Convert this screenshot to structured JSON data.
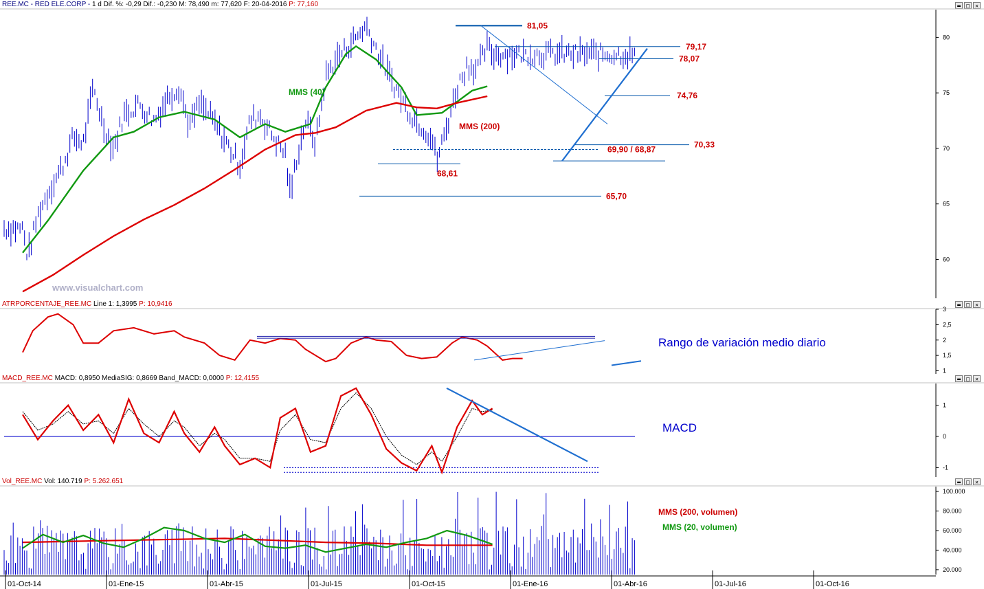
{
  "header": {
    "symbol": "REE.MC - RED ELE.CORP -",
    "stats": "1 d  Dif. %: -0,29  Dif.: -0,230  M: 78,490  m: 77,620  F: 20-04-2016",
    "price": "P: 77,160"
  },
  "watermark": "www.visualchart.com",
  "labels": {
    "mms40": "MMS (40)",
    "mms200": "MMS (200)",
    "atr_note": "Rango de variación medio diario",
    "macd_note": "MACD",
    "vol_mms200": "MMS (200, volumen)",
    "vol_mms20": "MMS (20, volumen)"
  },
  "window_buttons": [
    "▬",
    "□",
    "✕"
  ],
  "panels": {
    "atr": {
      "name": "ATRPORCENTAJE_REE.MC",
      "values": "Line 1: 1,3995",
      "price": "P: 10,9416"
    },
    "macd": {
      "name": "MACD_REE.MC",
      "values": "MACD: 0,8950  MediaSIG: 0,8669  Band_MACD: 0,0000",
      "price": "P: 12,4155"
    },
    "vol": {
      "name": "Vol_REE.MC",
      "values": "Vol: 140.719",
      "price": "P: 5.262.651"
    }
  },
  "colors": {
    "price_bars": "#0000cc",
    "mms40": "#119911",
    "mms200": "#dd0000",
    "trendline": "#1f6fd0",
    "levels": "#0055aa",
    "label_red": "#cc0000"
  },
  "chart_data": [
    {
      "type": "ohlc",
      "title": "REE.MC - RED ELE.CORP",
      "x": [
        "01-Oct-14",
        "01-Ene-15",
        "01-Abr-15",
        "01-Jul-15",
        "01-Oct-15",
        "01-Ene-16",
        "01-Abr-16",
        "01-Jul-16",
        "01-Oct-16"
      ],
      "ylim": [
        56.5,
        82.5
      ],
      "yticks": [
        "60",
        "65",
        "70",
        "75",
        "80"
      ],
      "series": [
        {
          "name": "MMS (40)",
          "points": [
            [
              0,
              60.6
            ],
            [
              0.25,
              63.5
            ],
            [
              0.6,
              68
            ],
            [
              0.9,
              71
            ],
            [
              1.1,
              71.5
            ],
            [
              1.35,
              72.8
            ],
            [
              1.6,
              73.3
            ],
            [
              1.9,
              72.6
            ],
            [
              2.15,
              71
            ],
            [
              2.4,
              72.2
            ],
            [
              2.6,
              71.5
            ],
            [
              2.85,
              72.2
            ],
            [
              3.0,
              75.5
            ],
            [
              3.2,
              78.5
            ],
            [
              3.3,
              79.2
            ],
            [
              3.5,
              78.0
            ],
            [
              3.75,
              75.5
            ],
            [
              3.9,
              73.0
            ],
            [
              4.15,
              73.2
            ],
            [
              4.3,
              74.2
            ],
            [
              4.45,
              75.2
            ],
            [
              4.6,
              75.6
            ]
          ]
        },
        {
          "name": "MMS (200)",
          "points": [
            [
              0,
              57.1
            ],
            [
              0.3,
              58.6
            ],
            [
              0.6,
              60.4
            ],
            [
              0.9,
              62.1
            ],
            [
              1.2,
              63.6
            ],
            [
              1.5,
              64.9
            ],
            [
              1.8,
              66.4
            ],
            [
              2.1,
              68.1
            ],
            [
              2.4,
              69.9
            ],
            [
              2.7,
              71.2
            ],
            [
              2.9,
              71.4
            ],
            [
              3.1,
              71.9
            ],
            [
              3.4,
              73.4
            ],
            [
              3.7,
              74.1
            ],
            [
              3.9,
              73.7
            ],
            [
              4.1,
              73.6
            ],
            [
              4.3,
              74.1
            ],
            [
              4.6,
              74.7
            ]
          ]
        },
        {
          "name": "price",
          "points": [
            [
              0,
              62.8
            ],
            [
              0.05,
              60.2
            ],
            [
              0.15,
              64
            ],
            [
              0.25,
              66
            ],
            [
              0.4,
              68.5
            ],
            [
              0.5,
              71
            ],
            [
              0.6,
              70.5
            ],
            [
              0.7,
              75.5
            ],
            [
              0.8,
              72
            ],
            [
              0.9,
              70
            ],
            [
              1.0,
              73
            ],
            [
              1.15,
              74
            ],
            [
              1.3,
              72.5
            ],
            [
              1.45,
              74.8
            ],
            [
              1.55,
              75.5
            ],
            [
              1.65,
              72
            ],
            [
              1.75,
              74
            ],
            [
              1.85,
              73
            ],
            [
              1.95,
              71.5
            ],
            [
              2.05,
              70
            ],
            [
              2.15,
              68.5
            ],
            [
              2.25,
              72.5
            ],
            [
              2.35,
              73
            ],
            [
              2.45,
              71.5
            ],
            [
              2.6,
              69.5
            ],
            [
              2.65,
              65.7
            ],
            [
              2.7,
              68.6
            ],
            [
              2.8,
              72.5
            ],
            [
              2.9,
              70.5
            ],
            [
              3.0,
              76.5
            ],
            [
              3.1,
              78
            ],
            [
              3.25,
              79.5
            ],
            [
              3.4,
              81.05
            ],
            [
              3.5,
              79
            ],
            [
              3.6,
              77
            ],
            [
              3.75,
              74.5
            ],
            [
              3.85,
              73
            ],
            [
              3.95,
              72
            ],
            [
              4.05,
              71
            ],
            [
              4.1,
              68.87
            ],
            [
              4.2,
              72
            ],
            [
              4.3,
              75.5
            ],
            [
              4.4,
              77.5
            ],
            [
              4.5,
              77.2
            ],
            [
              4.6,
              79.17
            ],
            [
              4.65,
              78.5
            ]
          ]
        }
      ],
      "levels": [
        {
          "value": 81.05,
          "label": "81,05"
        },
        {
          "value": 79.17,
          "label": "79,17"
        },
        {
          "value": 78.07,
          "label": "78,07"
        },
        {
          "value": 74.76,
          "label": "74,76"
        },
        {
          "value": 70.33,
          "label": "70,33"
        },
        {
          "value": 69.9,
          "label": "69,90 / 68,87",
          "dashed": true
        },
        {
          "value": 68.61,
          "label": "68,61"
        },
        {
          "value": 65.7,
          "label": "65,70"
        }
      ]
    },
    {
      "type": "line",
      "title": "ATRPORCENTAJE_REE.MC",
      "ylim": [
        0.9,
        3.0
      ],
      "yticks": [
        "1",
        "1,5",
        "2",
        "2,5",
        "3"
      ],
      "series": [
        {
          "name": "Line 1",
          "points": [
            [
              0,
              1.6
            ],
            [
              0.1,
              2.3
            ],
            [
              0.25,
              2.75
            ],
            [
              0.35,
              2.85
            ],
            [
              0.5,
              2.5
            ],
            [
              0.6,
              1.9
            ],
            [
              0.75,
              1.9
            ],
            [
              0.9,
              2.3
            ],
            [
              1.1,
              2.4
            ],
            [
              1.3,
              2.2
            ],
            [
              1.5,
              2.3
            ],
            [
              1.6,
              2.1
            ],
            [
              1.8,
              1.9
            ],
            [
              1.95,
              1.5
            ],
            [
              2.1,
              1.35
            ],
            [
              2.25,
              2.0
            ],
            [
              2.4,
              1.9
            ],
            [
              2.55,
              2.05
            ],
            [
              2.7,
              2.0
            ],
            [
              2.8,
              1.7
            ],
            [
              3.0,
              1.3
            ],
            [
              3.1,
              1.4
            ],
            [
              3.25,
              1.9
            ],
            [
              3.4,
              2.1
            ],
            [
              3.5,
              2.0
            ],
            [
              3.65,
              1.95
            ],
            [
              3.8,
              1.5
            ],
            [
              3.95,
              1.4
            ],
            [
              4.1,
              1.45
            ],
            [
              4.25,
              1.9
            ],
            [
              4.35,
              2.1
            ],
            [
              4.5,
              2.0
            ],
            [
              4.6,
              1.8
            ],
            [
              4.75,
              1.35
            ],
            [
              4.85,
              1.4
            ],
            [
              4.95,
              1.4
            ]
          ]
        }
      ]
    },
    {
      "type": "line",
      "title": "MACD_REE.MC",
      "ylim": [
        -1.3,
        1.7
      ],
      "yticks": [
        "-1",
        "0",
        "1"
      ],
      "series": [
        {
          "name": "MACD",
          "points": [
            [
              0,
              0.7
            ],
            [
              0.15,
              -0.1
            ],
            [
              0.3,
              0.5
            ],
            [
              0.45,
              1.0
            ],
            [
              0.6,
              0.2
            ],
            [
              0.75,
              0.7
            ],
            [
              0.9,
              -0.2
            ],
            [
              1.05,
              1.2
            ],
            [
              1.2,
              0.1
            ],
            [
              1.35,
              -0.2
            ],
            [
              1.5,
              0.8
            ],
            [
              1.6,
              0.1
            ],
            [
              1.75,
              -0.5
            ],
            [
              1.9,
              0.3
            ],
            [
              2.0,
              -0.3
            ],
            [
              2.15,
              -0.9
            ],
            [
              2.3,
              -0.7
            ],
            [
              2.45,
              -1.0
            ],
            [
              2.55,
              0.6
            ],
            [
              2.7,
              0.9
            ],
            [
              2.85,
              -0.5
            ],
            [
              3.0,
              -0.3
            ],
            [
              3.15,
              1.3
            ],
            [
              3.3,
              1.55
            ],
            [
              3.45,
              0.7
            ],
            [
              3.6,
              -0.4
            ],
            [
              3.75,
              -0.85
            ],
            [
              3.9,
              -1.1
            ],
            [
              4.05,
              -0.3
            ],
            [
              4.15,
              -1.15
            ],
            [
              4.3,
              0.3
            ],
            [
              4.45,
              1.15
            ],
            [
              4.55,
              0.7
            ],
            [
              4.65,
              0.9
            ]
          ]
        },
        {
          "name": "MediaSIG",
          "points": [
            [
              0,
              0.8
            ],
            [
              0.15,
              0.2
            ],
            [
              0.3,
              0.4
            ],
            [
              0.45,
              0.8
            ],
            [
              0.6,
              0.4
            ],
            [
              0.75,
              0.5
            ],
            [
              0.9,
              0.1
            ],
            [
              1.05,
              0.9
            ],
            [
              1.2,
              0.4
            ],
            [
              1.35,
              0.0
            ],
            [
              1.5,
              0.5
            ],
            [
              1.6,
              0.3
            ],
            [
              1.75,
              -0.3
            ],
            [
              1.9,
              0.1
            ],
            [
              2.0,
              -0.1
            ],
            [
              2.15,
              -0.7
            ],
            [
              2.3,
              -0.7
            ],
            [
              2.45,
              -0.8
            ],
            [
              2.55,
              0.2
            ],
            [
              2.7,
              0.7
            ],
            [
              2.85,
              -0.1
            ],
            [
              3.0,
              -0.2
            ],
            [
              3.15,
              0.9
            ],
            [
              3.3,
              1.4
            ],
            [
              3.45,
              0.9
            ],
            [
              3.6,
              0.0
            ],
            [
              3.75,
              -0.6
            ],
            [
              3.9,
              -0.9
            ],
            [
              4.05,
              -0.5
            ],
            [
              4.15,
              -0.8
            ],
            [
              4.3,
              0.0
            ],
            [
              4.45,
              0.9
            ],
            [
              4.55,
              0.8
            ],
            [
              4.65,
              0.85
            ]
          ]
        }
      ]
    },
    {
      "type": "bar",
      "title": "Vol_REE.MC",
      "ylim": [
        15000,
        105000
      ],
      "yticks": [
        "20.000",
        "40.000",
        "60.000",
        "80.000",
        "100.000"
      ],
      "series": [
        {
          "name": "MMS (200, volumen)",
          "points": [
            [
              0,
              48000
            ],
            [
              0.5,
              49000
            ],
            [
              1.0,
              50000
            ],
            [
              1.5,
              51000
            ],
            [
              2.0,
              52000
            ],
            [
              2.5,
              50000
            ],
            [
              3.0,
              48000
            ],
            [
              3.5,
              47000
            ],
            [
              4.0,
              45000
            ],
            [
              4.65,
              45000
            ]
          ]
        },
        {
          "name": "MMS (20, volumen)",
          "points": [
            [
              0,
              42000
            ],
            [
              0.2,
              56000
            ],
            [
              0.4,
              48000
            ],
            [
              0.6,
              55000
            ],
            [
              0.8,
              47000
            ],
            [
              1.0,
              43000
            ],
            [
              1.2,
              52000
            ],
            [
              1.4,
              63000
            ],
            [
              1.6,
              60000
            ],
            [
              1.8,
              52000
            ],
            [
              2.0,
              48000
            ],
            [
              2.2,
              56000
            ],
            [
              2.4,
              44000
            ],
            [
              2.6,
              42000
            ],
            [
              2.8,
              45000
            ],
            [
              3.0,
              38000
            ],
            [
              3.2,
              42000
            ],
            [
              3.4,
              46000
            ],
            [
              3.6,
              43000
            ],
            [
              3.8,
              48000
            ],
            [
              4.0,
              52000
            ],
            [
              4.2,
              60000
            ],
            [
              4.4,
              55000
            ],
            [
              4.65,
              46000
            ]
          ]
        }
      ]
    }
  ]
}
